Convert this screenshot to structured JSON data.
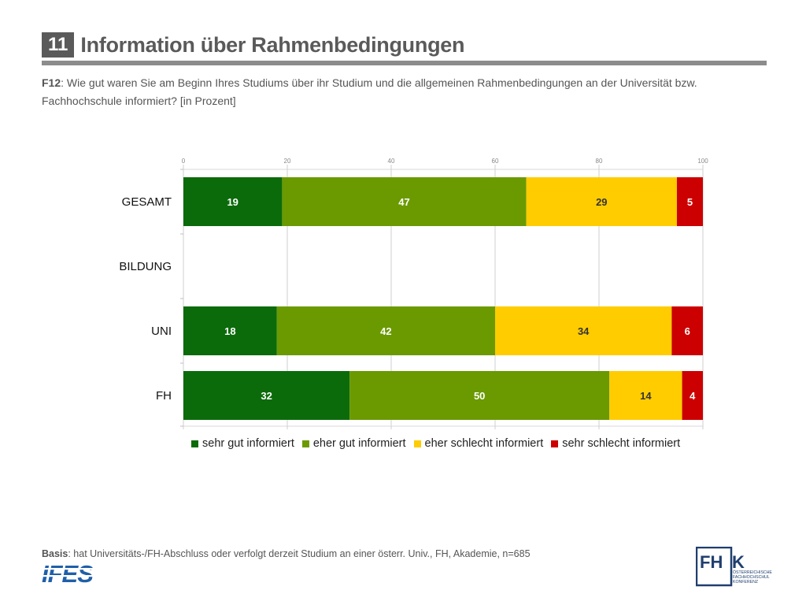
{
  "header": {
    "section_number": "11",
    "title": "Information über Rahmenbedingungen"
  },
  "question": {
    "code": "F12",
    "text": ": Wie gut waren Sie am Beginn Ihres Studiums über ihr Studium und die allgemeinen Rahmenbedingungen an der Universität bzw. Fachhochschule informiert? [in Prozent]"
  },
  "chart_data": {
    "type": "bar",
    "orientation": "horizontal",
    "stacked": true,
    "categories": [
      "GESAMT",
      "BILDUNG",
      "UNI",
      "FH"
    ],
    "series": [
      {
        "name": "sehr gut informiert",
        "color": "#0b6b0b",
        "values": [
          19,
          null,
          18,
          32
        ]
      },
      {
        "name": "eher gut informiert",
        "color": "#6a9a00",
        "values": [
          47,
          null,
          42,
          50
        ]
      },
      {
        "name": "eher schlecht informiert",
        "color": "#ffcc00",
        "values": [
          29,
          null,
          34,
          14
        ]
      },
      {
        "name": "sehr schlecht informiert",
        "color": "#cc0000",
        "values": [
          5,
          null,
          6,
          4
        ]
      }
    ],
    "xlim": [
      0,
      100
    ],
    "xticks": [
      "0",
      "20",
      "40",
      "60",
      "80",
      "100"
    ],
    "grid": true,
    "legend_position": "bottom"
  },
  "footer": {
    "basis_label": "Basis",
    "basis_text": ": hat Universitäts-/FH-Abschluss oder verfolgt derzeit Studium an einer österr. Univ., FH, Akademie, n=685"
  },
  "logos": {
    "left": "IFES",
    "right_main": "FHK",
    "right_sub": [
      "ÖSTERREICHISCHE",
      "FACHHOCHSCHUL",
      "KONFERENZ"
    ]
  }
}
